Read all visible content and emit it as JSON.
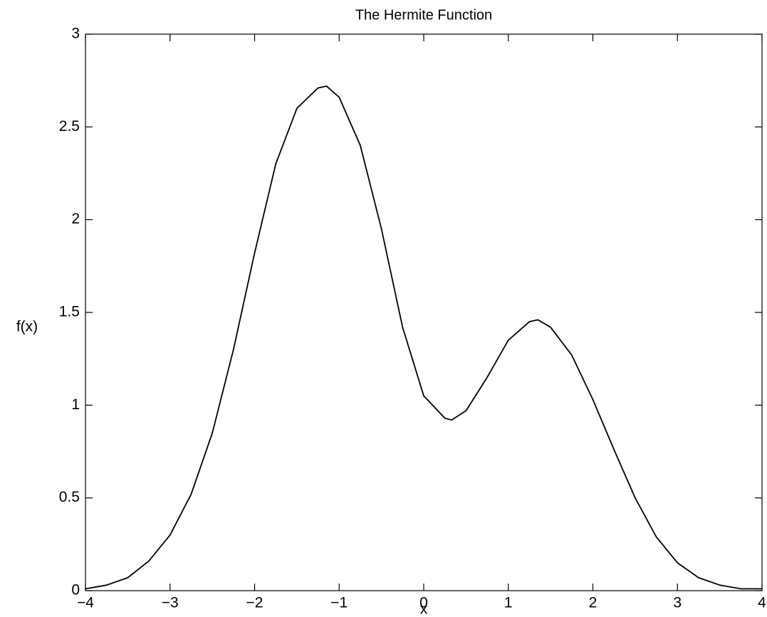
{
  "chart_data": {
    "type": "line",
    "title": "The Hermite Function",
    "x_label": "x",
    "y_label": "f(x)",
    "x": [
      -4,
      -3.75,
      -3.5,
      -3.25,
      -3,
      -2.75,
      -2.5,
      -2.25,
      -2,
      -1.75,
      -1.5,
      -1.25,
      -1.15,
      -1,
      -0.75,
      -0.5,
      -0.25,
      0,
      0.25,
      0.33,
      0.5,
      0.75,
      1,
      1.25,
      1.35,
      1.5,
      1.75,
      2,
      2.25,
      2.5,
      2.75,
      3,
      3.25,
      3.5,
      3.75,
      4
    ],
    "series": [
      {
        "color": "#000000",
        "values": [
          0.01,
          0.03,
          0.07,
          0.16,
          0.3,
          0.52,
          0.85,
          1.3,
          1.82,
          2.3,
          2.6,
          2.71,
          2.72,
          2.66,
          2.4,
          1.95,
          1.42,
          1.05,
          0.93,
          0.92,
          0.97,
          1.15,
          1.35,
          1.45,
          1.46,
          1.42,
          1.27,
          1.03,
          0.76,
          0.5,
          0.29,
          0.15,
          0.07,
          0.03,
          0.01,
          0.01
        ]
      }
    ],
    "xlim": [
      -4,
      4
    ],
    "xticks": [
      {
        "value": -4,
        "label": "−4"
      },
      {
        "value": -3,
        "label": "−3"
      },
      {
        "value": -2,
        "label": "−2"
      },
      {
        "value": -1,
        "label": "−1"
      },
      0,
      1,
      2,
      3,
      4
    ],
    "ylim": [
      0,
      3
    ],
    "yticks": [
      0,
      0.5,
      1,
      1.5,
      2,
      2.5,
      3
    ],
    "grid": false
  }
}
